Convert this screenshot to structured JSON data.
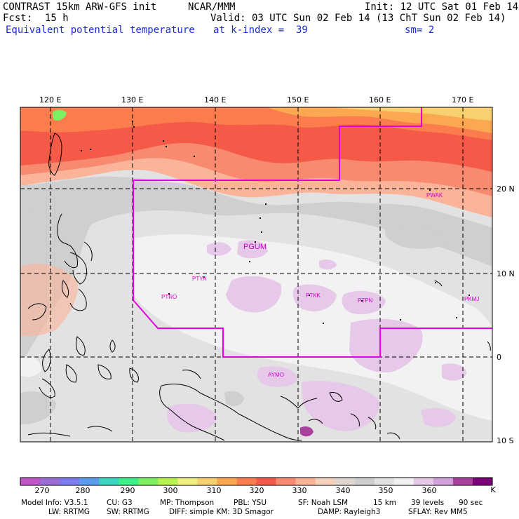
{
  "header": {
    "title": "CONTRAST 15km ARW-GFS init",
    "org": "NCAR/MMM",
    "init": "Init: 12 UTC Sat 01 Feb 14",
    "fcst_label": "Fcst:",
    "fcst_value": "15 h",
    "valid": "Valid: 03 UTC Sun 02 Feb 14 (13 ChT Sun 02 Feb 14)",
    "field": "Equivalent potential temperature",
    "level": "at k-index =  39",
    "smoothing": "sm= 2"
  },
  "axes": {
    "lon_labels": [
      "120 E",
      "130 E",
      "140 E",
      "150 E",
      "160 E",
      "170 E"
    ],
    "lat_labels": [
      "20 N",
      "10 N",
      "0",
      "10 S"
    ]
  },
  "stations": [
    "PGUM",
    "PWAK",
    "PTYA",
    "PTRO",
    "PTKK",
    "PTPN",
    "PKMJ",
    "AYMO"
  ],
  "colorbar": {
    "unit": "K",
    "labels": [
      "270",
      "280",
      "290",
      "300",
      "310",
      "320",
      "330",
      "340",
      "350",
      "360"
    ],
    "colors": [
      "#c054c8",
      "#9a6ed6",
      "#7c7cf0",
      "#5a9cf0",
      "#38d6c0",
      "#3cf08a",
      "#7cf060",
      "#b8f250",
      "#f0f080",
      "#f8d070",
      "#fca850",
      "#fb7c4c",
      "#f55a48",
      "#f88a70",
      "#fbb49a",
      "#f5d2bc",
      "#e0d8d0",
      "#cfcfcf",
      "#e2e2e2",
      "#f2f2f2",
      "#e6c8e8",
      "#d2a2da",
      "#a8409e",
      "#7a0078"
    ],
    "colors_note": "bins"
  },
  "model_info": {
    "line1": [
      "Model Info: V3.5.1",
      "CU: G3",
      "MP: Thompson",
      "PBL: YSU",
      "SF: Noah LSM",
      "15 km",
      "39 levels",
      "90 sec"
    ],
    "line2": [
      "LW: RRTMG",
      "SW: RRTMG",
      "DIFF: simple KM: 3D Smagor",
      "DAMP: Rayleigh3",
      "SFLAY: Rev MM5"
    ]
  },
  "colors": {
    "domain_border": "#e000e0",
    "station_text": "#d000d0",
    "header_blue": "#1a2bd6"
  }
}
